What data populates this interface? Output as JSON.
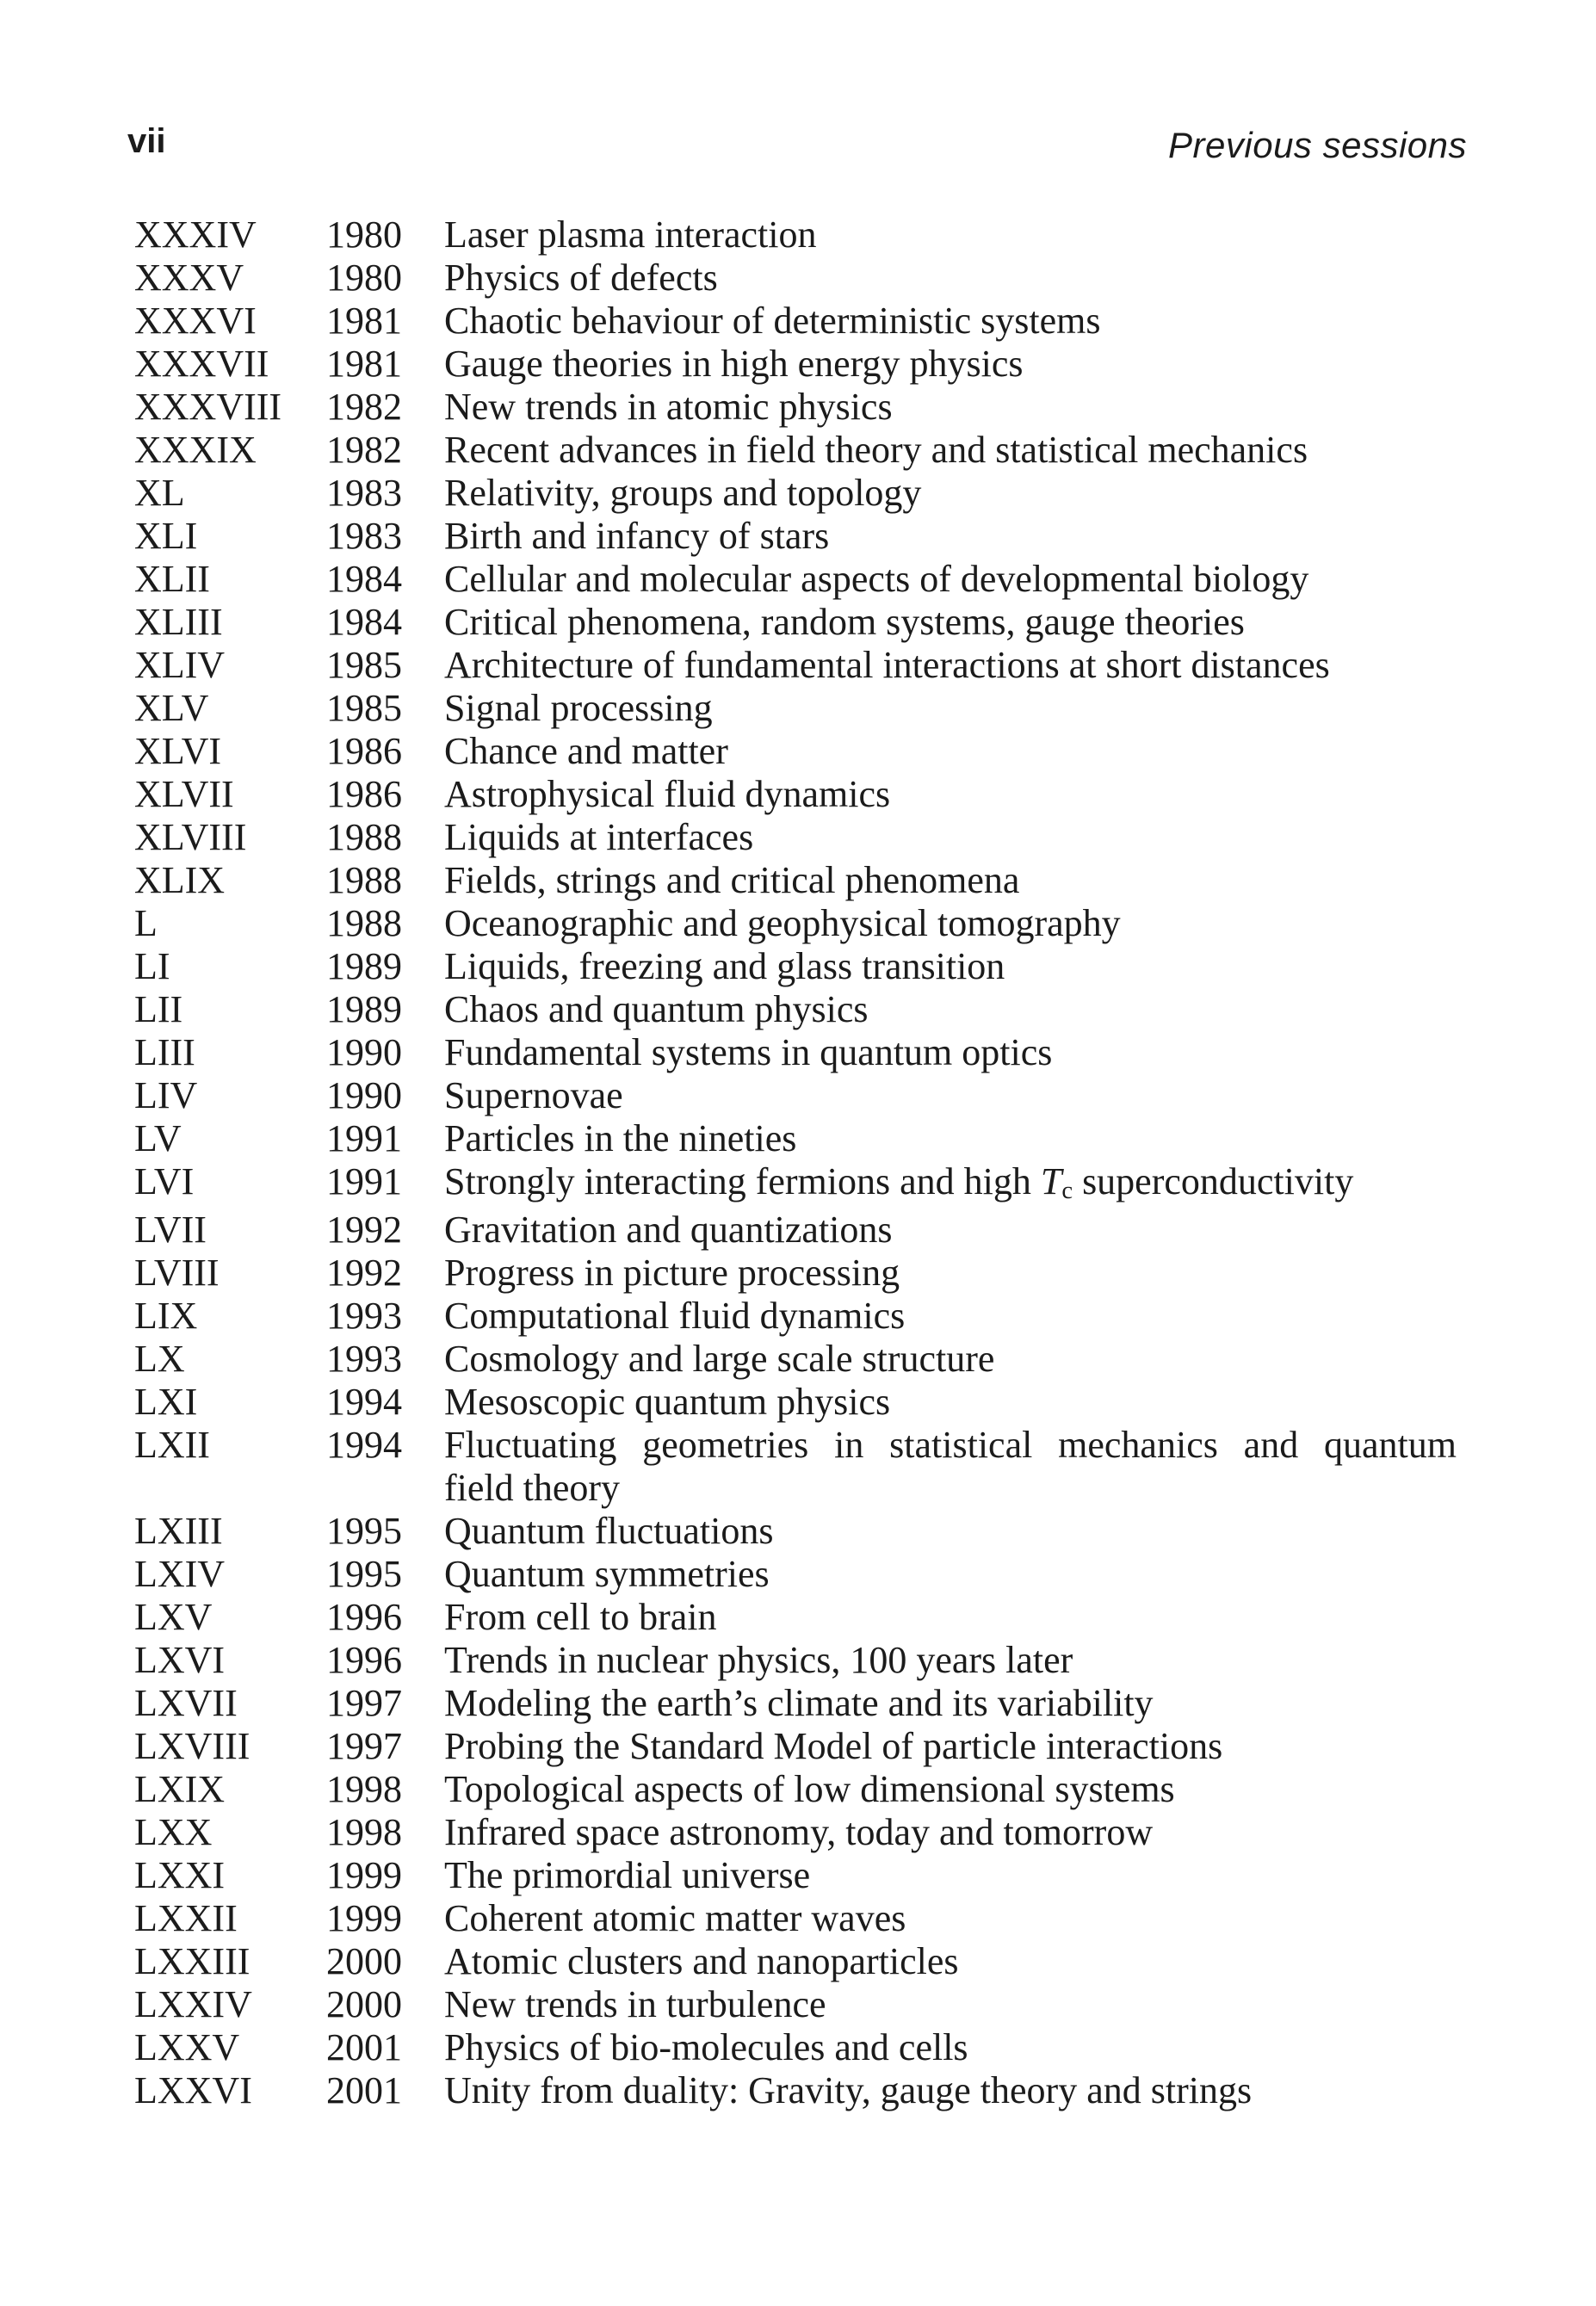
{
  "page": {
    "page_number": "vii",
    "running_header": "Previous sessions"
  },
  "colors": {
    "text": "#1b1b1b",
    "background": "#ffffff"
  },
  "table": {
    "rows": [
      {
        "numeral": "XXXIV",
        "year": "1980",
        "title": "Laser plasma interaction"
      },
      {
        "numeral": "XXXV",
        "year": "1980",
        "title": "Physics of defects"
      },
      {
        "numeral": "XXXVI",
        "year": "1981",
        "title": "Chaotic behaviour of deterministic systems"
      },
      {
        "numeral": "XXXVII",
        "year": "1981",
        "title": "Gauge theories in high energy physics"
      },
      {
        "numeral": "XXXVIII",
        "year": "1982",
        "title": "New trends in atomic physics"
      },
      {
        "numeral": "XXXIX",
        "year": "1982",
        "title": "Recent advances in field theory and statistical mechanics"
      },
      {
        "numeral": "XL",
        "year": "1983",
        "title": "Relativity, groups and topology"
      },
      {
        "numeral": "XLI",
        "year": "1983",
        "title": "Birth and infancy of stars"
      },
      {
        "numeral": "XLII",
        "year": "1984",
        "title": "Cellular and molecular aspects of developmental biology"
      },
      {
        "numeral": "XLIII",
        "year": "1984",
        "title": "Critical phenomena, random systems, gauge theories"
      },
      {
        "numeral": "XLIV",
        "year": "1985",
        "title": "Architecture of fundamental interactions at short distances"
      },
      {
        "numeral": "XLV",
        "year": "1985",
        "title": "Signal processing"
      },
      {
        "numeral": "XLVI",
        "year": "1986",
        "title": "Chance and matter"
      },
      {
        "numeral": "XLVII",
        "year": "1986",
        "title": "Astrophysical fluid dynamics"
      },
      {
        "numeral": "XLVIII",
        "year": "1988",
        "title": "Liquids at interfaces"
      },
      {
        "numeral": "XLIX",
        "year": "1988",
        "title": "Fields, strings and critical phenomena"
      },
      {
        "numeral": "L",
        "year": "1988",
        "title": "Oceanographic and geophysical tomography"
      },
      {
        "numeral": "LI",
        "year": "1989",
        "title": "Liquids, freezing and glass transition"
      },
      {
        "numeral": "LII",
        "year": "1989",
        "title": "Chaos and quantum physics"
      },
      {
        "numeral": "LIII",
        "year": "1990",
        "title": "Fundamental systems in quantum optics"
      },
      {
        "numeral": "LIV",
        "year": "1990",
        "title": "Supernovae"
      },
      {
        "numeral": "LV",
        "year": "1991",
        "title": "Particles in the nineties"
      },
      {
        "numeral": "LVI",
        "year": "1991",
        "title": "Strongly interacting fermions and high $T_c$ superconductivity"
      },
      {
        "numeral": "LVII",
        "year": "1992",
        "title": "Gravitation and quantizations"
      },
      {
        "numeral": "LVIII",
        "year": "1992",
        "title": "Progress in picture processing"
      },
      {
        "numeral": "LIX",
        "year": "1993",
        "title": "Computational fluid dynamics"
      },
      {
        "numeral": "LX",
        "year": "1993",
        "title": "Cosmology and large scale structure"
      },
      {
        "numeral": "LXI",
        "year": "1994",
        "title": "Mesoscopic quantum physics"
      },
      {
        "numeral": "LXII",
        "year": "1994",
        "title_lines": [
          "Fluctuating geometries in statistical mechanics and quantum",
          "field theory"
        ],
        "justify_first_line": true
      },
      {
        "numeral": "LXIII",
        "year": "1995",
        "title": "Quantum fluctuations"
      },
      {
        "numeral": "LXIV",
        "year": "1995",
        "title": "Quantum symmetries"
      },
      {
        "numeral": "LXV",
        "year": "1996",
        "title": "From cell to brain"
      },
      {
        "numeral": "LXVI",
        "year": "1996",
        "title": "Trends in nuclear physics, 100 years later"
      },
      {
        "numeral": "LXVII",
        "year": "1997",
        "title": "Modeling the earth’s climate and its variability"
      },
      {
        "numeral": "LXVIII",
        "year": "1997",
        "title": "Probing the Standard Model of particle interactions"
      },
      {
        "numeral": "LXIX",
        "year": "1998",
        "title": "Topological aspects of low dimensional systems"
      },
      {
        "numeral": "LXX",
        "year": "1998",
        "title": "Infrared space astronomy, today and tomorrow"
      },
      {
        "numeral": "LXXI",
        "year": "1999",
        "title": "The primordial universe"
      },
      {
        "numeral": "LXXII",
        "year": "1999",
        "title": "Coherent atomic matter waves"
      },
      {
        "numeral": "LXXIII",
        "year": "2000",
        "title": "Atomic clusters and nanoparticles"
      },
      {
        "numeral": "LXXIV",
        "year": "2000",
        "title": "New trends in turbulence"
      },
      {
        "numeral": "LXXV",
        "year": "2001",
        "title": "Physics of bio-molecules and cells"
      },
      {
        "numeral": "LXXVI",
        "year": "2001",
        "title": "Unity from duality: Gravity, gauge theory and strings"
      }
    ]
  }
}
